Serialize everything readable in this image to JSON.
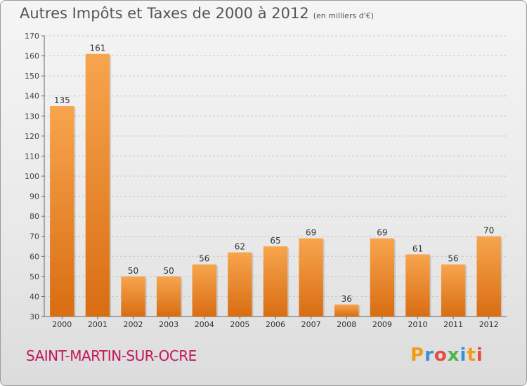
{
  "header": {
    "title": "Autres Impôts et Taxes de 2000 à 2012",
    "subtitle": "(en milliers d'€)"
  },
  "footer": {
    "place": "SAINT-MARTIN-SUR-OCRE",
    "logo_text": "Proxiti",
    "logo_colors": [
      "#f39c12",
      "#3a8fd9",
      "#e74c3c",
      "#4fb34f",
      "#3a8fd9",
      "#f39c12",
      "#e74c3c"
    ]
  },
  "chart_data": {
    "type": "bar",
    "categories": [
      "2000",
      "2001",
      "2002",
      "2003",
      "2004",
      "2005",
      "2006",
      "2007",
      "2008",
      "2009",
      "2010",
      "2011",
      "2012"
    ],
    "values": [
      135,
      161,
      50,
      50,
      56,
      62,
      65,
      69,
      36,
      69,
      61,
      56,
      70
    ],
    "ylim": [
      30,
      170
    ],
    "yticks": [
      30,
      40,
      50,
      60,
      70,
      80,
      90,
      100,
      110,
      120,
      130,
      140,
      150,
      160,
      170
    ],
    "grid": true,
    "bar_color_light": "#f7a54e",
    "bar_color_dark": "#d96d12"
  }
}
